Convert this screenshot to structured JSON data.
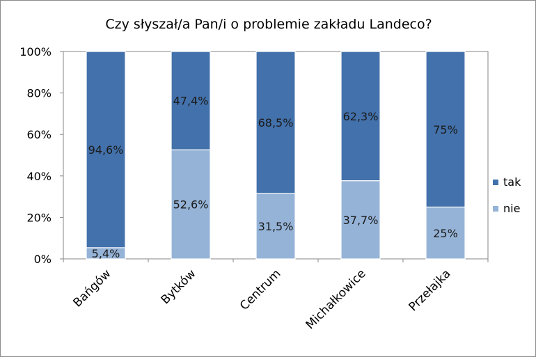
{
  "chart_data": {
    "type": "bar",
    "stacked": true,
    "percent": true,
    "title": "Czy słyszał/a Pan/i o problemie zakładu Landeco?",
    "xlabel": "",
    "ylabel": "",
    "ylim": [
      0,
      100
    ],
    "y_ticks": [
      "0%",
      "20%",
      "40%",
      "60%",
      "80%",
      "100%"
    ],
    "grid": false,
    "legend_position": "right",
    "categories": [
      "Bańgów",
      "Bytków",
      "Centrum",
      "Michałkowice",
      "Przełajka"
    ],
    "series": [
      {
        "name": "nie",
        "color": "#95B3D7",
        "values": [
          5.4,
          52.6,
          31.5,
          37.7,
          25
        ],
        "labels": [
          "5,4%",
          "52,6%",
          "31,5%",
          "37,7%",
          "25%"
        ]
      },
      {
        "name": "tak",
        "color": "#4371AB",
        "values": [
          94.6,
          47.4,
          68.5,
          62.3,
          75
        ],
        "labels": [
          "94,6%",
          "47,4%",
          "68,5%",
          "62,3%",
          "75%"
        ]
      }
    ],
    "legend_order": [
      "tak",
      "nie"
    ]
  }
}
